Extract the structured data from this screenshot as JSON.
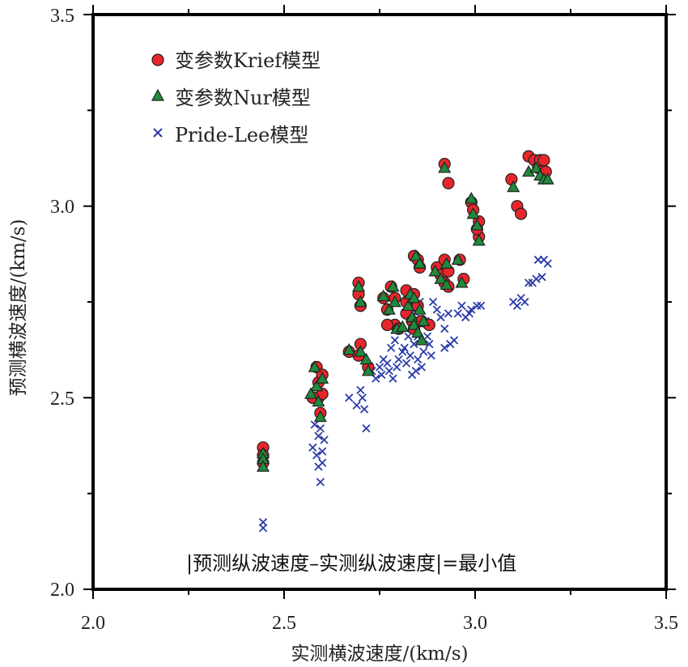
{
  "chart_data": {
    "type": "scatter",
    "xlabel": "实测横波速度/(km/s)",
    "ylabel": "预测横波速度/(km/s)",
    "xlim": [
      2.0,
      3.5
    ],
    "ylim": [
      2.0,
      3.5
    ],
    "xticks": [
      "2.0",
      "2.5",
      "3.0",
      "3.5"
    ],
    "yticks": [
      "2.0",
      "2.5",
      "3.0",
      "3.5"
    ],
    "legend_position": "top-left",
    "annotation": "|预测纵波速度–实测纵波速度|=最小值",
    "series": [
      {
        "name": "变参数Krief模型",
        "marker": "circle",
        "color": "#e8262a",
        "points": [
          [
            2.445,
            2.37
          ],
          [
            2.445,
            2.35
          ],
          [
            2.445,
            2.33
          ],
          [
            2.585,
            2.58
          ],
          [
            2.59,
            2.54
          ],
          [
            2.59,
            2.5
          ],
          [
            2.595,
            2.46
          ],
          [
            2.6,
            2.56
          ],
          [
            2.6,
            2.51
          ],
          [
            2.575,
            2.5
          ],
          [
            2.67,
            2.62
          ],
          [
            2.695,
            2.8
          ],
          [
            2.695,
            2.77
          ],
          [
            2.7,
            2.74
          ],
          [
            2.695,
            2.61
          ],
          [
            2.7,
            2.64
          ],
          [
            2.72,
            2.58
          ],
          [
            2.76,
            2.76
          ],
          [
            2.77,
            2.73
          ],
          [
            2.78,
            2.79
          ],
          [
            2.79,
            2.76
          ],
          [
            2.79,
            2.69
          ],
          [
            2.8,
            2.68
          ],
          [
            2.77,
            2.69
          ],
          [
            2.82,
            2.75
          ],
          [
            2.82,
            2.78
          ],
          [
            2.82,
            2.72
          ],
          [
            2.835,
            2.7
          ],
          [
            2.84,
            2.87
          ],
          [
            2.85,
            2.86
          ],
          [
            2.855,
            2.84
          ],
          [
            2.84,
            2.77
          ],
          [
            2.85,
            2.74
          ],
          [
            2.86,
            2.7
          ],
          [
            2.88,
            2.69
          ],
          [
            2.84,
            2.68
          ],
          [
            2.9,
            2.84
          ],
          [
            2.91,
            2.82
          ],
          [
            2.92,
            2.8
          ],
          [
            2.92,
            2.86
          ],
          [
            2.93,
            2.83
          ],
          [
            2.93,
            2.79
          ],
          [
            2.96,
            2.86
          ],
          [
            2.97,
            2.81
          ],
          [
            2.92,
            3.11
          ],
          [
            2.93,
            3.06
          ],
          [
            2.99,
            3.01
          ],
          [
            2.995,
            2.99
          ],
          [
            3.01,
            2.96
          ],
          [
            3.01,
            2.92
          ],
          [
            3.005,
            2.94
          ],
          [
            3.095,
            3.07
          ],
          [
            3.11,
            3.0
          ],
          [
            3.12,
            2.98
          ],
          [
            3.14,
            3.13
          ],
          [
            3.155,
            3.12
          ],
          [
            3.165,
            3.1
          ],
          [
            3.17,
            3.12
          ],
          [
            3.18,
            3.12
          ],
          [
            3.185,
            3.09
          ]
        ]
      },
      {
        "name": "变参数Nur模型",
        "marker": "triangle",
        "color": "#1f8a3c",
        "points": [
          [
            2.445,
            2.355
          ],
          [
            2.445,
            2.34
          ],
          [
            2.445,
            2.32
          ],
          [
            2.58,
            2.58
          ],
          [
            2.585,
            2.53
          ],
          [
            2.59,
            2.49
          ],
          [
            2.595,
            2.45
          ],
          [
            2.6,
            2.55
          ],
          [
            2.57,
            2.51
          ],
          [
            2.67,
            2.625
          ],
          [
            2.695,
            2.79
          ],
          [
            2.7,
            2.75
          ],
          [
            2.7,
            2.62
          ],
          [
            2.715,
            2.6
          ],
          [
            2.72,
            2.57
          ],
          [
            2.76,
            2.765
          ],
          [
            2.775,
            2.73
          ],
          [
            2.785,
            2.79
          ],
          [
            2.79,
            2.75
          ],
          [
            2.795,
            2.68
          ],
          [
            2.81,
            2.685
          ],
          [
            2.825,
            2.74
          ],
          [
            2.83,
            2.77
          ],
          [
            2.835,
            2.71
          ],
          [
            2.84,
            2.69
          ],
          [
            2.845,
            2.87
          ],
          [
            2.855,
            2.85
          ],
          [
            2.84,
            2.76
          ],
          [
            2.855,
            2.73
          ],
          [
            2.865,
            2.7
          ],
          [
            2.85,
            2.67
          ],
          [
            2.86,
            2.65
          ],
          [
            2.895,
            2.83
          ],
          [
            2.91,
            2.81
          ],
          [
            2.925,
            2.795
          ],
          [
            2.925,
            2.85
          ],
          [
            2.955,
            2.86
          ],
          [
            2.965,
            2.8
          ],
          [
            2.92,
            3.1
          ],
          [
            2.99,
            3.02
          ],
          [
            2.995,
            2.98
          ],
          [
            3.005,
            2.95
          ],
          [
            3.01,
            2.91
          ],
          [
            3.1,
            3.05
          ],
          [
            3.14,
            3.09
          ],
          [
            3.16,
            3.1
          ],
          [
            3.17,
            3.08
          ],
          [
            3.18,
            3.07
          ],
          [
            3.19,
            3.07
          ]
        ]
      },
      {
        "name": "Pride-Lee模型",
        "marker": "cross",
        "color": "#2a3ca8",
        "points": [
          [
            2.445,
            2.175
          ],
          [
            2.445,
            2.16
          ],
          [
            2.575,
            2.37
          ],
          [
            2.58,
            2.43
          ],
          [
            2.585,
            2.35
          ],
          [
            2.59,
            2.4
          ],
          [
            2.59,
            2.32
          ],
          [
            2.595,
            2.42
          ],
          [
            2.595,
            2.28
          ],
          [
            2.6,
            2.36
          ],
          [
            2.6,
            2.33
          ],
          [
            2.605,
            2.39
          ],
          [
            2.67,
            2.5
          ],
          [
            2.69,
            2.48
          ],
          [
            2.7,
            2.52
          ],
          [
            2.705,
            2.5
          ],
          [
            2.71,
            2.47
          ],
          [
            2.715,
            2.42
          ],
          [
            2.73,
            2.57
          ],
          [
            2.74,
            2.55
          ],
          [
            2.75,
            2.58
          ],
          [
            2.755,
            2.56
          ],
          [
            2.76,
            2.6
          ],
          [
            2.77,
            2.59
          ],
          [
            2.775,
            2.57
          ],
          [
            2.78,
            2.63
          ],
          [
            2.785,
            2.55
          ],
          [
            2.79,
            2.65
          ],
          [
            2.795,
            2.58
          ],
          [
            2.8,
            2.6
          ],
          [
            2.81,
            2.62
          ],
          [
            2.815,
            2.63
          ],
          [
            2.82,
            2.59
          ],
          [
            2.825,
            2.66
          ],
          [
            2.83,
            2.61
          ],
          [
            2.835,
            2.68
          ],
          [
            2.84,
            2.64
          ],
          [
            2.845,
            2.72
          ],
          [
            2.85,
            2.66
          ],
          [
            2.85,
            2.6
          ],
          [
            2.855,
            2.75
          ],
          [
            2.86,
            2.69
          ],
          [
            2.86,
            2.58
          ],
          [
            2.865,
            2.62
          ],
          [
            2.87,
            2.7
          ],
          [
            2.875,
            2.66
          ],
          [
            2.88,
            2.64
          ],
          [
            2.885,
            2.61
          ],
          [
            2.835,
            2.56
          ],
          [
            2.845,
            2.57
          ],
          [
            2.89,
            2.75
          ],
          [
            2.9,
            2.73
          ],
          [
            2.91,
            2.71
          ],
          [
            2.92,
            2.68
          ],
          [
            2.92,
            2.63
          ],
          [
            2.93,
            2.72
          ],
          [
            2.935,
            2.64
          ],
          [
            2.945,
            2.65
          ],
          [
            2.955,
            2.72
          ],
          [
            2.965,
            2.74
          ],
          [
            2.975,
            2.71
          ],
          [
            2.985,
            2.72
          ],
          [
            2.99,
            2.73
          ],
          [
            3.005,
            2.74
          ],
          [
            3.015,
            2.74
          ],
          [
            3.1,
            2.75
          ],
          [
            3.11,
            2.74
          ],
          [
            3.12,
            2.76
          ],
          [
            3.13,
            2.75
          ],
          [
            3.14,
            2.8
          ],
          [
            3.15,
            2.8
          ],
          [
            3.16,
            2.81
          ],
          [
            3.165,
            2.86
          ],
          [
            3.175,
            2.815
          ],
          [
            3.18,
            2.86
          ],
          [
            3.19,
            2.85
          ]
        ]
      }
    ]
  }
}
